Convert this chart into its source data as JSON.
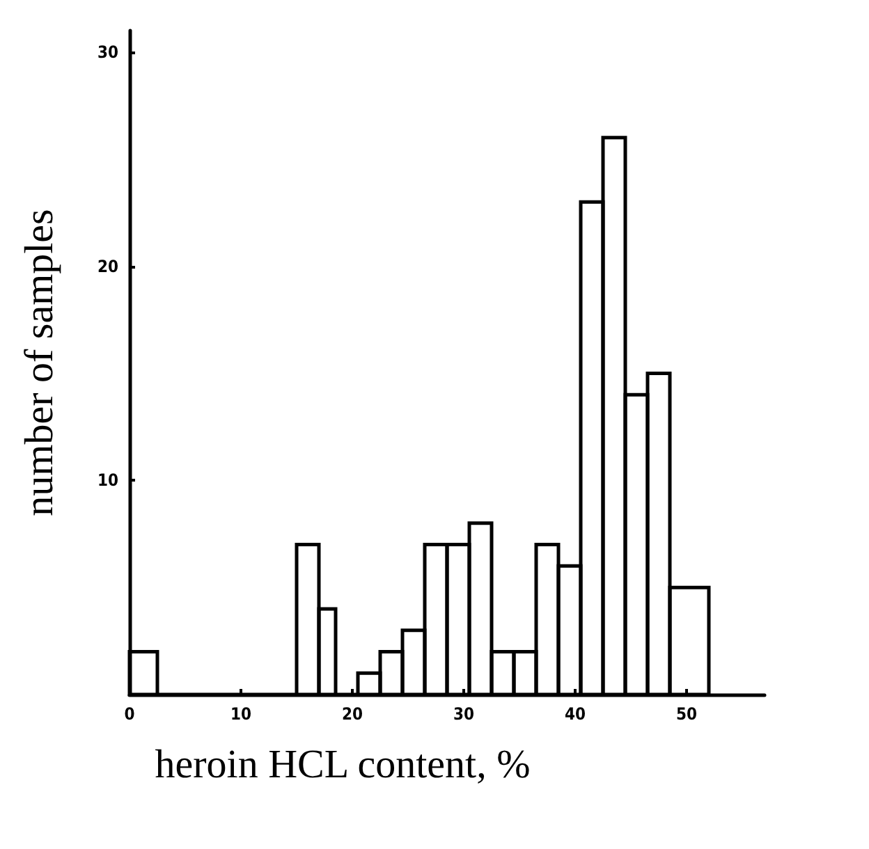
{
  "chart_data": {
    "type": "histogram",
    "xlabel": "heroin HCL content, %",
    "ylabel": "number of samples",
    "bins": [
      0,
      2.5,
      15,
      17,
      18.5,
      20.5,
      22.5,
      24.5,
      26.5,
      28.5,
      30.5,
      32.5,
      34.5,
      36.5,
      38.5,
      40.5,
      42.5,
      44.5,
      46.5,
      48.5,
      52
    ],
    "values": [
      2,
      0,
      7,
      4,
      0,
      1,
      2,
      3,
      7,
      7,
      8,
      2,
      2,
      7,
      6,
      23,
      26,
      14,
      15,
      5
    ],
    "color": "#000000",
    "xlim": [
      0,
      57
    ],
    "xticks": [
      0,
      10,
      20,
      30,
      40,
      50
    ],
    "ylim": [
      0,
      31
    ],
    "yticks": [
      10,
      20,
      30
    ],
    "grid": false
  }
}
